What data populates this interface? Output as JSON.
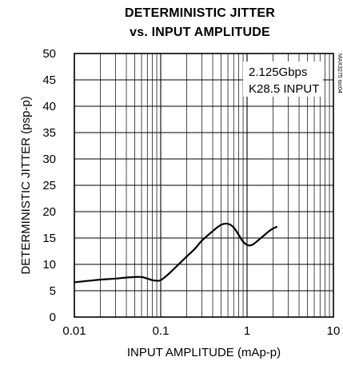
{
  "chart_data": {
    "type": "line",
    "title_lines": [
      "DETERMINISTIC JITTER",
      "vs. INPUT AMPLITUDE"
    ],
    "xlabel": "INPUT AMPLITUDE (mAp-p)",
    "ylabel": "DETERMINISTIC JITTER (psp-p)",
    "x_scale": "log",
    "xlim": [
      0.01,
      10
    ],
    "ylim": [
      0,
      50
    ],
    "x_ticks": [
      {
        "value": 0.01,
        "label": "0.01"
      },
      {
        "value": 0.1,
        "label": "0.1"
      },
      {
        "value": 1,
        "label": "1"
      },
      {
        "value": 10,
        "label": "10"
      }
    ],
    "y_ticks": [
      {
        "value": 0,
        "label": "0"
      },
      {
        "value": 5,
        "label": "5"
      },
      {
        "value": 10,
        "label": "10"
      },
      {
        "value": 15,
        "label": "15"
      },
      {
        "value": 20,
        "label": "20"
      },
      {
        "value": 25,
        "label": "25"
      },
      {
        "value": 30,
        "label": "30"
      },
      {
        "value": 35,
        "label": "35"
      },
      {
        "value": 40,
        "label": "40"
      },
      {
        "value": 45,
        "label": "45"
      },
      {
        "value": 50,
        "label": "50"
      }
    ],
    "grid": true,
    "annotation_lines": [
      "2.125Gbps",
      "K28.5 INPUT"
    ],
    "watermark": "MAX3275 toc04",
    "series": [
      {
        "x": [
          0.01,
          0.015,
          0.02,
          0.03,
          0.04,
          0.05,
          0.06,
          0.07,
          0.08,
          0.09,
          0.1,
          0.12,
          0.15,
          0.2,
          0.25,
          0.3,
          0.4,
          0.5,
          0.6,
          0.7,
          0.8,
          0.9,
          1.0,
          1.1,
          1.2,
          1.4,
          1.6,
          1.8,
          2.0,
          2.2
        ],
        "y": [
          6.6,
          6.9,
          7.1,
          7.3,
          7.5,
          7.6,
          7.6,
          7.3,
          7.0,
          6.9,
          7.0,
          8.0,
          9.5,
          11.5,
          13.0,
          14.5,
          16.3,
          17.5,
          17.7,
          17.0,
          15.6,
          14.3,
          13.7,
          13.6,
          13.9,
          14.8,
          15.6,
          16.3,
          16.8,
          17.1
        ]
      }
    ]
  }
}
